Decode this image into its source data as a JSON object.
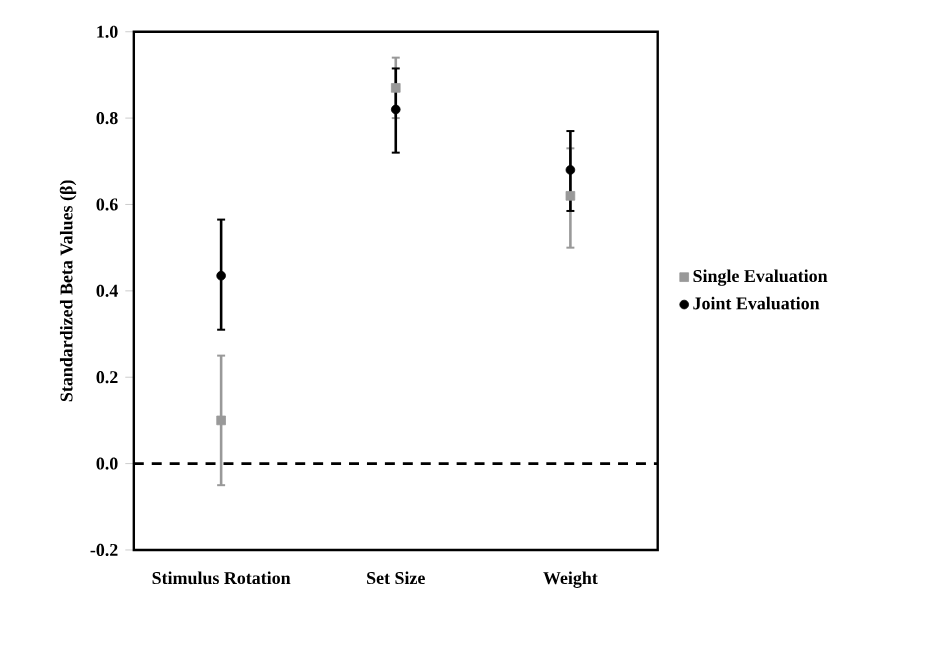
{
  "chart_data": {
    "type": "scatter",
    "ylabel": "Standardized Beta Values (β)",
    "categories": [
      "Stimulus Rotation",
      "Set Size",
      "Weight"
    ],
    "series": [
      {
        "name": "Single Evaluation",
        "color": "#999999",
        "marker": "square",
        "values": [
          0.1,
          0.87,
          0.62
        ],
        "errors": [
          [
            -0.05,
            0.25
          ],
          [
            0.8,
            0.94
          ],
          [
            0.5,
            0.73
          ]
        ]
      },
      {
        "name": "Joint Evaluation",
        "color": "#000000",
        "marker": "circle",
        "values": [
          0.435,
          0.82,
          0.68
        ],
        "errors": [
          [
            0.31,
            0.565
          ],
          [
            0.72,
            0.915
          ],
          [
            0.585,
            0.77
          ]
        ]
      }
    ],
    "ylim": [
      -0.2,
      1.0
    ],
    "yticks": [
      {
        "value": -0.2,
        "label": "-0.2"
      },
      {
        "value": 0,
        "label": "0.0"
      },
      {
        "value": 0.2,
        "label": "0.2"
      },
      {
        "value": 0.4,
        "label": "0.4"
      },
      {
        "value": 0.6,
        "label": "0.6"
      },
      {
        "value": 0.8,
        "label": "0.8"
      },
      {
        "value": 1.0,
        "label": "1.0"
      }
    ],
    "ref_lines": [
      {
        "axis": "y",
        "value": 0,
        "color": "#000000",
        "line_style": "dashed"
      }
    ],
    "legend": "right",
    "grid": false
  }
}
